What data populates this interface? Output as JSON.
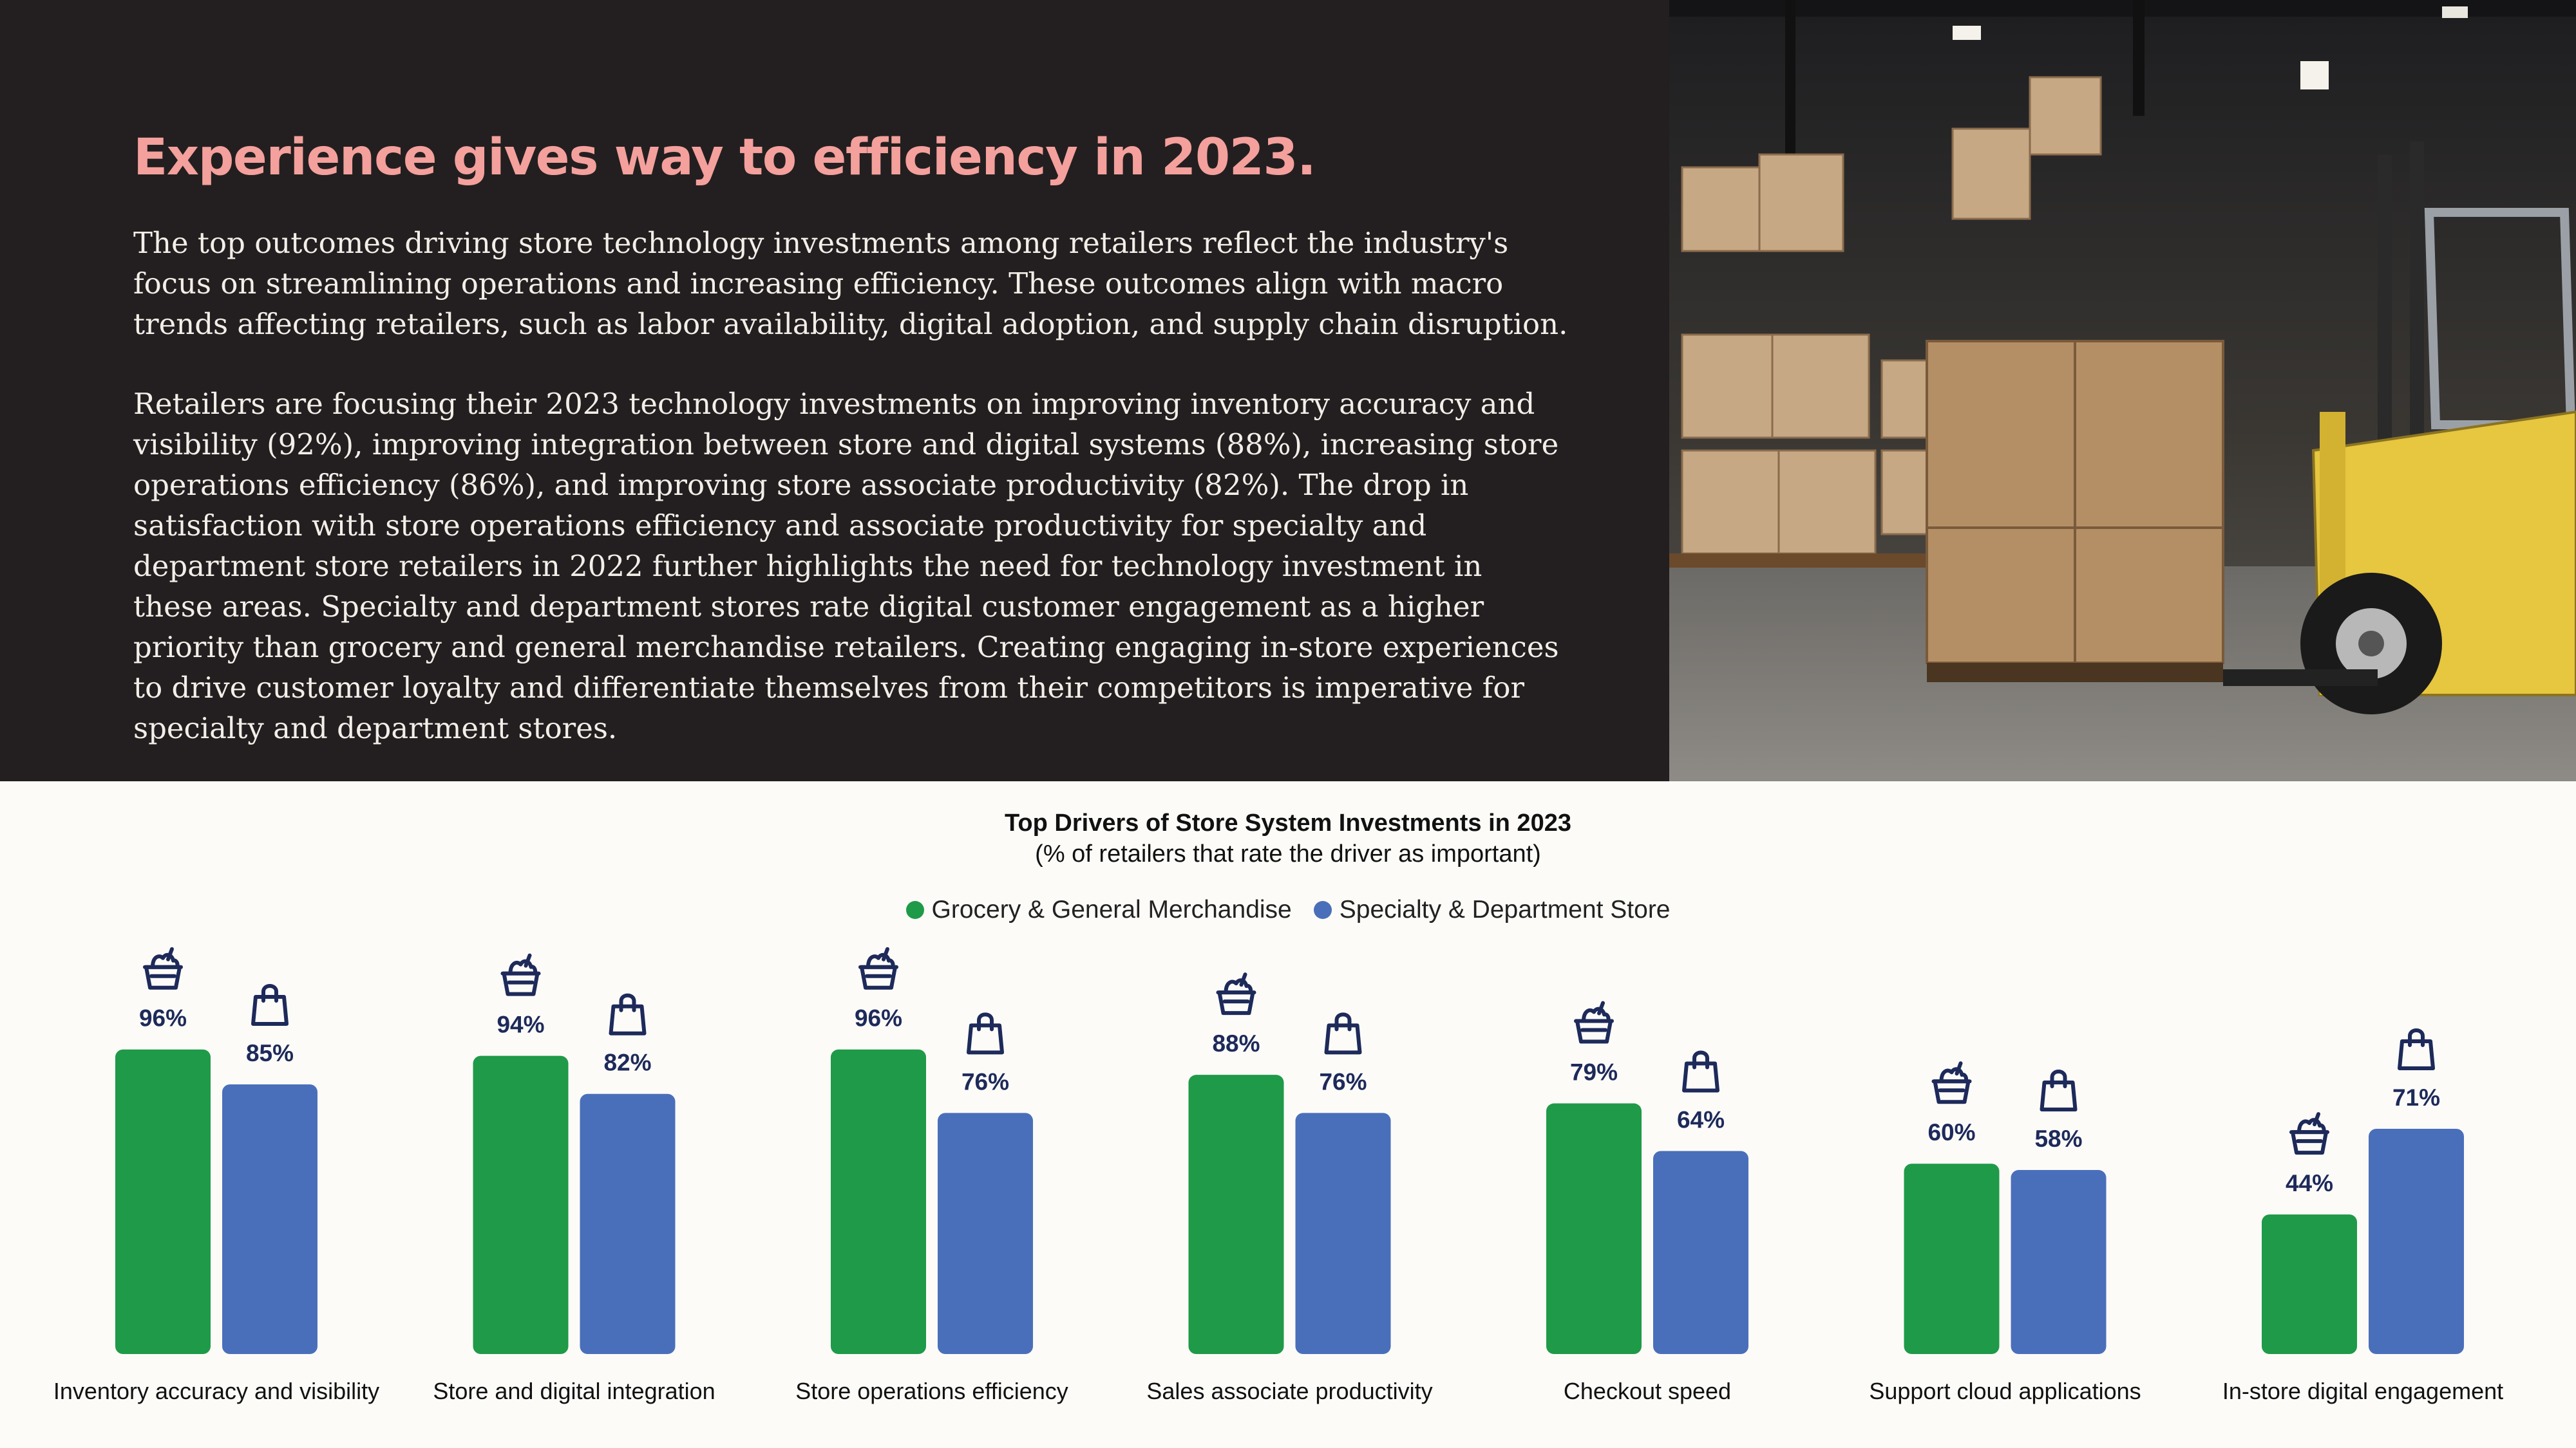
{
  "headline": "Experience gives way to efficiency in 2023.",
  "paragraphs": [
    "The top outcomes driving store technology investments among retailers reflect the industry's focus on streamlining operations and increasing efficiency. These outcomes align with macro trends affecting retailers, such as labor availability, digital adoption, and supply chain disruption.",
    "Retailers are focusing their 2023 technology investments on improving inventory accuracy and visibility (92%), improving integration between store and digital systems (88%), increasing store operations efficiency (86%), and improving store associate productivity (82%). The drop in satisfaction with store operations efficiency and associate productivity for specialty and department store retailers in 2022 further highlights the need for technology investment in these areas. Specialty and department stores rate digital customer engagement as a higher priority than grocery and general merchandise retailers. Creating engaging in-store experiences to drive customer loyalty and differentiate themselves from their competitors is imperative for specialty and department stores."
  ],
  "colors": {
    "grocery": "#1f9a48",
    "specialty": "#4a6fba",
    "headline": "#f4a09c",
    "icon": "#1d2a5a"
  },
  "icons": {
    "grocery": "grocery-basket-icon",
    "specialty": "shopping-bag-icon"
  },
  "chart_data": {
    "type": "bar",
    "title": "Top Drivers of Store System Investments in 2023",
    "subtitle": "(% of retailers that rate the driver as important)",
    "categories": [
      "Inventory accuracy and visibility",
      "Store and digital integration",
      "Store operations efficiency",
      "Sales associate productivity",
      "Checkout speed",
      "Support cloud applications",
      "In-store digital engagement"
    ],
    "series": [
      {
        "name": "Grocery & General Merchandise",
        "values": [
          96,
          94,
          96,
          88,
          79,
          60,
          44
        ]
      },
      {
        "name": "Specialty & Department Store",
        "values": [
          85,
          82,
          76,
          76,
          64,
          58,
          71
        ]
      }
    ],
    "value_suffix": "%",
    "ylim": [
      0,
      100
    ],
    "grid": false,
    "legend": "top-center"
  }
}
